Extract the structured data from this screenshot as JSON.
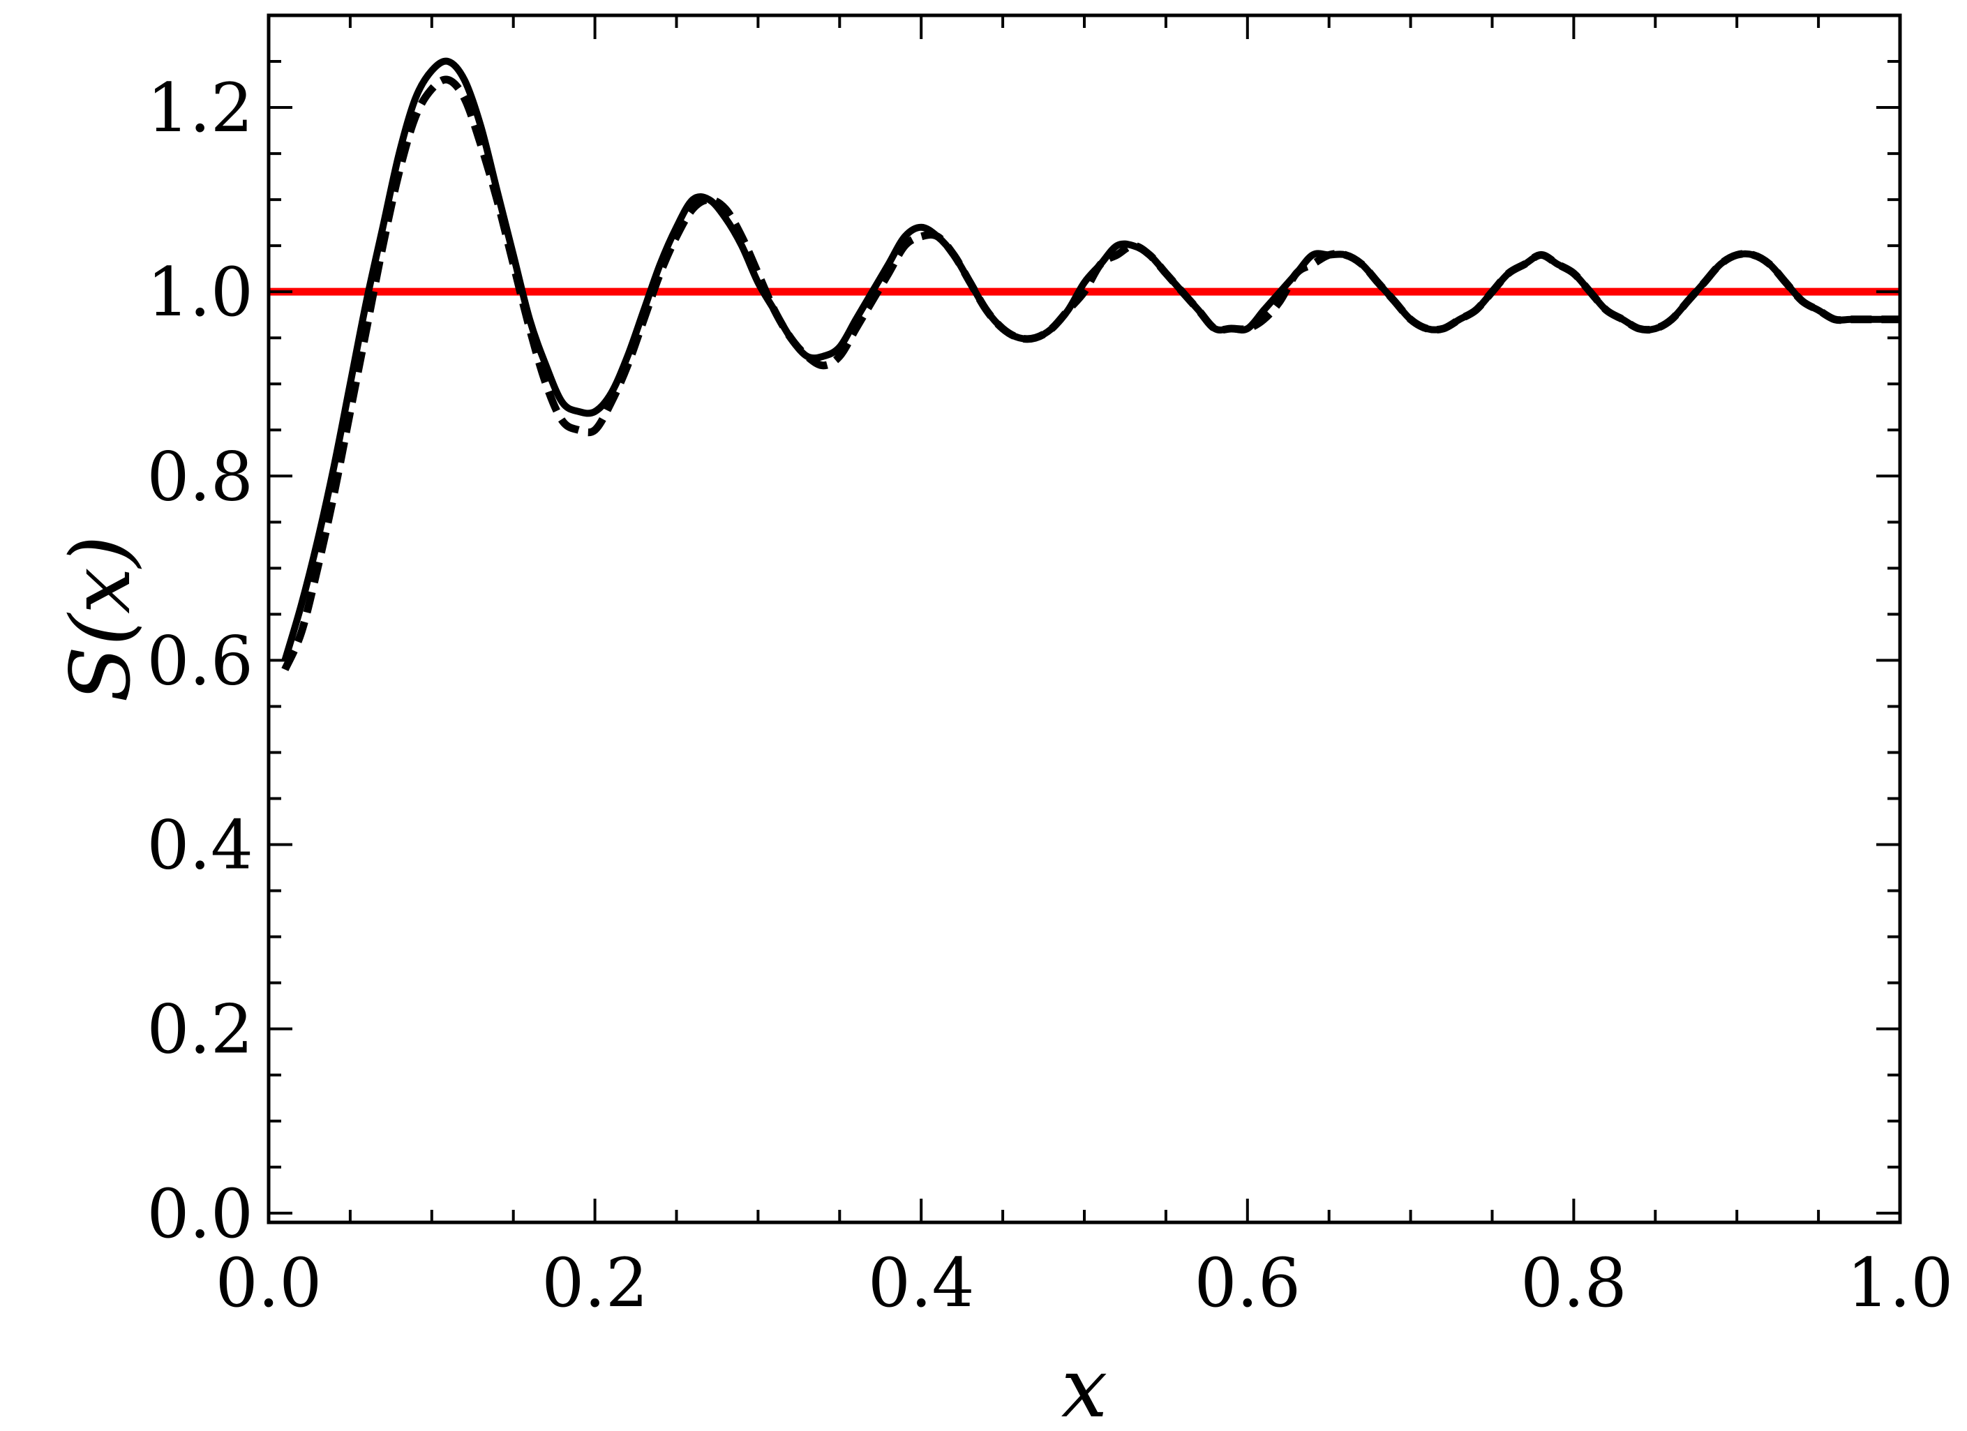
{
  "chart_data": {
    "type": "line",
    "title": "",
    "xlabel": "x",
    "ylabel": "S(x)",
    "xlim": [
      0.0,
      1.0
    ],
    "ylim": [
      -0.01,
      1.3
    ],
    "grid": false,
    "legend": "none",
    "x_ticks": [
      {
        "value": 0.0,
        "label": "0.0"
      },
      {
        "value": 0.2,
        "label": "0.2"
      },
      {
        "value": 0.4,
        "label": "0.4"
      },
      {
        "value": 0.6,
        "label": "0.6"
      },
      {
        "value": 0.8,
        "label": "0.8"
      },
      {
        "value": 1.0,
        "label": "1.0"
      }
    ],
    "y_ticks": [
      {
        "value": 0.0,
        "label": "0.0"
      },
      {
        "value": 0.2,
        "label": "0.2"
      },
      {
        "value": 0.4,
        "label": "0.4"
      },
      {
        "value": 0.6,
        "label": "0.6"
      },
      {
        "value": 0.8,
        "label": "0.8"
      },
      {
        "value": 1.0,
        "label": "1.0"
      },
      {
        "value": 1.2,
        "label": "1.2"
      }
    ],
    "reference_line": {
      "y": 1.0,
      "color": "#ff0000"
    },
    "series": [
      {
        "style": "solid",
        "color": "#000000",
        "x": [
          0.01,
          0.02,
          0.03,
          0.04,
          0.05,
          0.06,
          0.07,
          0.08,
          0.09,
          0.1,
          0.11,
          0.12,
          0.13,
          0.14,
          0.15,
          0.16,
          0.17,
          0.18,
          0.19,
          0.2,
          0.21,
          0.22,
          0.23,
          0.24,
          0.25,
          0.26,
          0.27,
          0.28,
          0.29,
          0.3,
          0.31,
          0.32,
          0.33,
          0.34,
          0.35,
          0.36,
          0.37,
          0.38,
          0.39,
          0.4,
          0.41,
          0.42,
          0.43,
          0.44,
          0.45,
          0.46,
          0.47,
          0.48,
          0.49,
          0.5,
          0.51,
          0.52,
          0.53,
          0.54,
          0.55,
          0.56,
          0.57,
          0.58,
          0.59,
          0.6,
          0.61,
          0.62,
          0.63,
          0.64,
          0.65,
          0.66,
          0.67,
          0.68,
          0.69,
          0.7,
          0.71,
          0.72,
          0.73,
          0.74,
          0.75,
          0.76,
          0.77,
          0.78,
          0.79,
          0.8,
          0.81,
          0.82,
          0.83,
          0.84,
          0.85,
          0.86,
          0.87,
          0.88,
          0.89,
          0.9,
          0.91,
          0.92,
          0.93,
          0.94,
          0.95,
          0.96,
          0.97,
          0.98,
          0.99,
          1.0
        ],
        "y": [
          0.6,
          0.66,
          0.73,
          0.81,
          0.9,
          0.99,
          1.07,
          1.15,
          1.21,
          1.24,
          1.25,
          1.23,
          1.18,
          1.11,
          1.04,
          0.97,
          0.92,
          0.88,
          0.87,
          0.87,
          0.89,
          0.93,
          0.98,
          1.03,
          1.07,
          1.1,
          1.1,
          1.08,
          1.05,
          1.01,
          0.98,
          0.95,
          0.93,
          0.93,
          0.94,
          0.97,
          1.0,
          1.03,
          1.06,
          1.07,
          1.06,
          1.04,
          1.01,
          0.98,
          0.96,
          0.95,
          0.95,
          0.96,
          0.98,
          1.01,
          1.03,
          1.05,
          1.05,
          1.04,
          1.02,
          1.0,
          0.98,
          0.96,
          0.96,
          0.96,
          0.98,
          1.0,
          1.02,
          1.04,
          1.04,
          1.04,
          1.03,
          1.01,
          0.99,
          0.97,
          0.96,
          0.96,
          0.97,
          0.98,
          1.0,
          1.02,
          1.03,
          1.04,
          1.03,
          1.02,
          1.0,
          0.98,
          0.97,
          0.96,
          0.96,
          0.97,
          0.99,
          1.01,
          1.03,
          1.04,
          1.04,
          1.03,
          1.01,
          0.99,
          0.98,
          0.97,
          0.97,
          0.97,
          0.97,
          0.97
        ]
      },
      {
        "style": "dashed",
        "color": "#000000",
        "x": [
          0.01,
          0.02,
          0.03,
          0.04,
          0.05,
          0.06,
          0.07,
          0.08,
          0.09,
          0.1,
          0.11,
          0.12,
          0.13,
          0.14,
          0.15,
          0.16,
          0.17,
          0.18,
          0.19,
          0.2,
          0.21,
          0.22,
          0.23,
          0.24,
          0.25,
          0.26,
          0.27,
          0.28,
          0.29,
          0.3,
          0.31,
          0.32,
          0.33,
          0.34,
          0.35,
          0.36,
          0.37,
          0.38,
          0.39,
          0.4,
          0.41,
          0.42,
          0.43,
          0.44,
          0.45,
          0.46,
          0.47,
          0.48,
          0.49,
          0.5,
          0.51,
          0.52,
          0.53,
          0.54,
          0.55,
          0.56,
          0.57,
          0.58,
          0.59,
          0.6,
          0.61,
          0.62,
          0.63,
          0.64,
          0.65,
          0.66,
          0.67,
          0.68,
          0.69,
          0.7,
          0.71,
          0.72,
          0.73,
          0.74,
          0.75,
          0.76,
          0.77,
          0.78,
          0.79,
          0.8,
          0.81,
          0.82,
          0.83,
          0.84,
          0.85,
          0.86,
          0.87,
          0.88,
          0.89,
          0.9,
          0.91,
          0.92,
          0.93,
          0.94,
          0.95,
          0.96,
          0.97,
          0.98,
          0.99,
          1.0
        ],
        "y": [
          0.59,
          0.63,
          0.7,
          0.78,
          0.87,
          0.96,
          1.05,
          1.13,
          1.19,
          1.22,
          1.23,
          1.21,
          1.16,
          1.1,
          1.03,
          0.96,
          0.9,
          0.86,
          0.85,
          0.85,
          0.88,
          0.92,
          0.97,
          1.02,
          1.06,
          1.09,
          1.1,
          1.09,
          1.06,
          1.02,
          0.98,
          0.95,
          0.93,
          0.92,
          0.93,
          0.96,
          0.99,
          1.02,
          1.05,
          1.06,
          1.06,
          1.04,
          1.01,
          0.98,
          0.96,
          0.95,
          0.95,
          0.96,
          0.98,
          1.0,
          1.03,
          1.04,
          1.05,
          1.04,
          1.02,
          1.0,
          0.98,
          0.96,
          0.96,
          0.96,
          0.97,
          0.99,
          1.02,
          1.03,
          1.04,
          1.04,
          1.03,
          1.01,
          0.99,
          0.97,
          0.96,
          0.96,
          0.97,
          0.98,
          1.0,
          1.02,
          1.03,
          1.04,
          1.03,
          1.02,
          1.0,
          0.98,
          0.97,
          0.96,
          0.96,
          0.97,
          0.99,
          1.01,
          1.03,
          1.04,
          1.04,
          1.03,
          1.01,
          0.99,
          0.98,
          0.97,
          0.97,
          0.97,
          0.97,
          0.97
        ]
      }
    ]
  }
}
